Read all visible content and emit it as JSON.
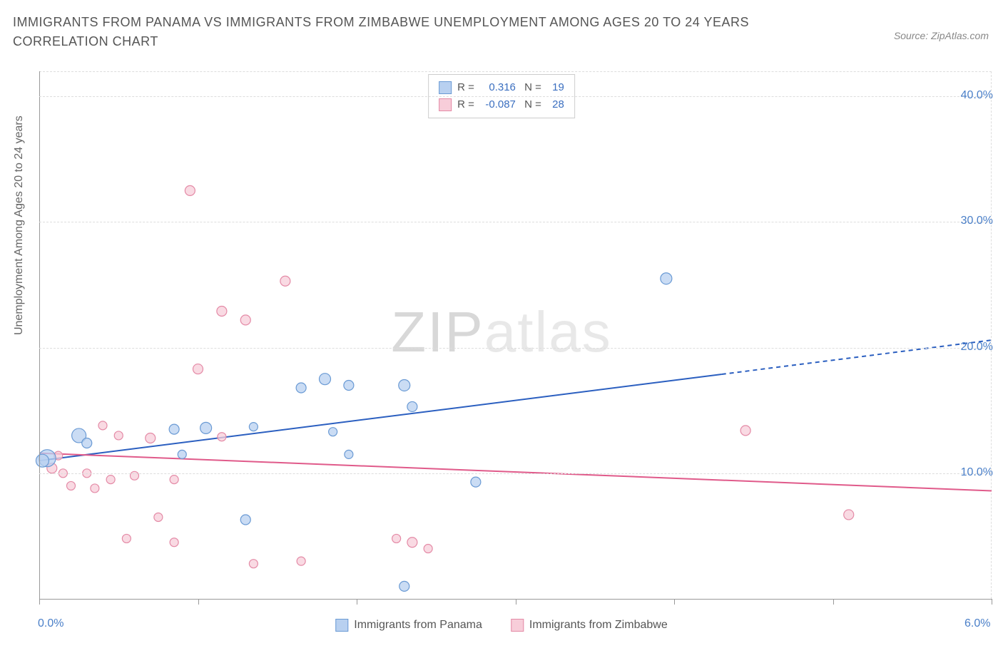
{
  "header": {
    "title": "IMMIGRANTS FROM PANAMA VS IMMIGRANTS FROM ZIMBABWE UNEMPLOYMENT AMONG AGES 20 TO 24 YEARS CORRELATION CHART",
    "source": "Source: ZipAtlas.com"
  },
  "watermark": {
    "zip": "ZIP",
    "atlas": "atlas"
  },
  "chart": {
    "type": "scatter",
    "y_axis_title": "Unemployment Among Ages 20 to 24 years",
    "background_color": "#ffffff",
    "grid_color": "#dddddd",
    "axis_color": "#999999",
    "label_color": "#4a7fc8",
    "title_fontsize": 18,
    "label_fontsize": 16,
    "xlim": [
      0.0,
      6.0
    ],
    "ylim": [
      0.0,
      42.0
    ],
    "xtick_positions": [
      0,
      1,
      2,
      3,
      4,
      5,
      6
    ],
    "xtick_labels": {
      "0": "0.0%",
      "6": "6.0%"
    },
    "ytick_positions": [
      10,
      20,
      30,
      40
    ],
    "ytick_labels": {
      "10": "10.0%",
      "20": "20.0%",
      "30": "30.0%",
      "40": "40.0%"
    },
    "series": [
      {
        "name": "Immigrants from Panama",
        "color_fill": "#b8d0f0",
        "color_stroke": "#6a9ad4",
        "marker_opacity": 0.75,
        "marker_stroke_width": 1.2,
        "trend": {
          "color": "#2b5fc0",
          "width": 2,
          "solid_to_x": 4.3,
          "y_at_0": 11.0,
          "y_at_6": 20.6
        },
        "R": "0.316",
        "N": "19",
        "points": [
          {
            "x": 0.05,
            "y": 11.2,
            "r": 12
          },
          {
            "x": 0.02,
            "y": 11.0,
            "r": 9
          },
          {
            "x": 0.25,
            "y": 13.0,
            "r": 10
          },
          {
            "x": 0.3,
            "y": 12.4,
            "r": 7
          },
          {
            "x": 0.85,
            "y": 13.5,
            "r": 7
          },
          {
            "x": 0.9,
            "y": 11.5,
            "r": 6
          },
          {
            "x": 1.05,
            "y": 13.6,
            "r": 8
          },
          {
            "x": 1.35,
            "y": 13.7,
            "r": 6
          },
          {
            "x": 1.3,
            "y": 6.3,
            "r": 7
          },
          {
            "x": 1.65,
            "y": 16.8,
            "r": 7
          },
          {
            "x": 1.8,
            "y": 17.5,
            "r": 8
          },
          {
            "x": 1.85,
            "y": 13.3,
            "r": 6
          },
          {
            "x": 1.95,
            "y": 17.0,
            "r": 7
          },
          {
            "x": 1.95,
            "y": 11.5,
            "r": 6
          },
          {
            "x": 2.3,
            "y": 17.0,
            "r": 8
          },
          {
            "x": 2.35,
            "y": 15.3,
            "r": 7
          },
          {
            "x": 2.3,
            "y": 1.0,
            "r": 7
          },
          {
            "x": 2.75,
            "y": 9.3,
            "r": 7
          },
          {
            "x": 3.95,
            "y": 25.5,
            "r": 8
          }
        ]
      },
      {
        "name": "Immigrants from Zimbabwe",
        "color_fill": "#f7cdd9",
        "color_stroke": "#e48aa6",
        "marker_opacity": 0.75,
        "marker_stroke_width": 1.2,
        "trend": {
          "color": "#e05a8a",
          "width": 2,
          "solid_to_x": 6.0,
          "y_at_0": 11.6,
          "y_at_6": 8.6
        },
        "R": "-0.087",
        "N": "28",
        "points": [
          {
            "x": 0.08,
            "y": 10.4,
            "r": 7
          },
          {
            "x": 0.15,
            "y": 10.0,
            "r": 6
          },
          {
            "x": 0.2,
            "y": 9.0,
            "r": 6
          },
          {
            "x": 0.3,
            "y": 10.0,
            "r": 6
          },
          {
            "x": 0.35,
            "y": 8.8,
            "r": 6
          },
          {
            "x": 0.45,
            "y": 9.5,
            "r": 6
          },
          {
            "x": 0.5,
            "y": 13.0,
            "r": 6
          },
          {
            "x": 0.55,
            "y": 4.8,
            "r": 6
          },
          {
            "x": 0.6,
            "y": 9.8,
            "r": 6
          },
          {
            "x": 0.7,
            "y": 12.8,
            "r": 7
          },
          {
            "x": 0.75,
            "y": 6.5,
            "r": 6
          },
          {
            "x": 0.85,
            "y": 9.5,
            "r": 6
          },
          {
            "x": 0.85,
            "y": 4.5,
            "r": 6
          },
          {
            "x": 0.95,
            "y": 32.5,
            "r": 7
          },
          {
            "x": 1.0,
            "y": 18.3,
            "r": 7
          },
          {
            "x": 1.15,
            "y": 12.9,
            "r": 6
          },
          {
            "x": 1.15,
            "y": 22.9,
            "r": 7
          },
          {
            "x": 1.3,
            "y": 22.2,
            "r": 7
          },
          {
            "x": 1.35,
            "y": 2.8,
            "r": 6
          },
          {
            "x": 1.55,
            "y": 25.3,
            "r": 7
          },
          {
            "x": 1.65,
            "y": 3.0,
            "r": 6
          },
          {
            "x": 2.25,
            "y": 4.8,
            "r": 6
          },
          {
            "x": 2.35,
            "y": 4.5,
            "r": 7
          },
          {
            "x": 2.45,
            "y": 4.0,
            "r": 6
          },
          {
            "x": 4.45,
            "y": 13.4,
            "r": 7
          },
          {
            "x": 5.1,
            "y": 6.7,
            "r": 7
          },
          {
            "x": 0.4,
            "y": 13.8,
            "r": 6
          },
          {
            "x": 0.12,
            "y": 11.4,
            "r": 6
          }
        ]
      }
    ],
    "legend_bottom": [
      {
        "label": "Immigrants from Panama",
        "fill": "#b8d0f0",
        "stroke": "#6a9ad4"
      },
      {
        "label": "Immigrants from Zimbabwe",
        "fill": "#f7cdd9",
        "stroke": "#e48aa6"
      }
    ]
  }
}
